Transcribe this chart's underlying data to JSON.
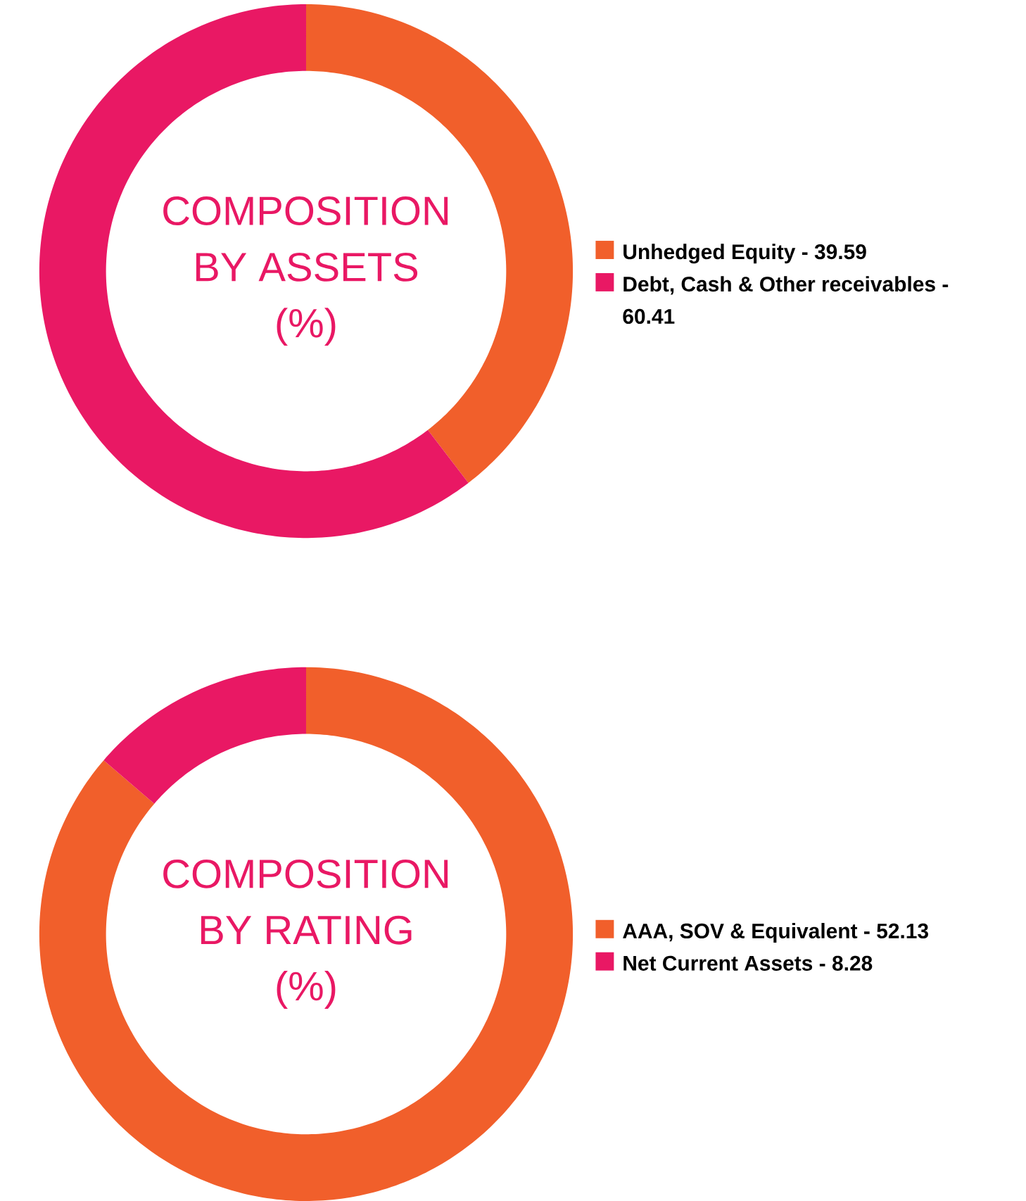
{
  "chart_data": [
    {
      "type": "donut",
      "title": "COMPOSITION BY ASSETS",
      "subtitle": "(%)",
      "categories": [
        "Unhedged Equity -",
        "Debt, Cash & Other receivables -"
      ],
      "values": [
        39.59,
        60.41
      ],
      "colors": [
        "#f15f2b",
        "#e91864"
      ],
      "data_labels": true,
      "legend": "right"
    },
    {
      "type": "donut",
      "title": "COMPOSITION BY RATING",
      "subtitle": "(%)",
      "categories": [
        "AAA, SOV & Equivalent -",
        "Net Current Assets -"
      ],
      "values": [
        52.13,
        8.28
      ],
      "colors": [
        "#f15f2b",
        "#e91864"
      ],
      "data_labels": true,
      "legend": "right"
    }
  ]
}
